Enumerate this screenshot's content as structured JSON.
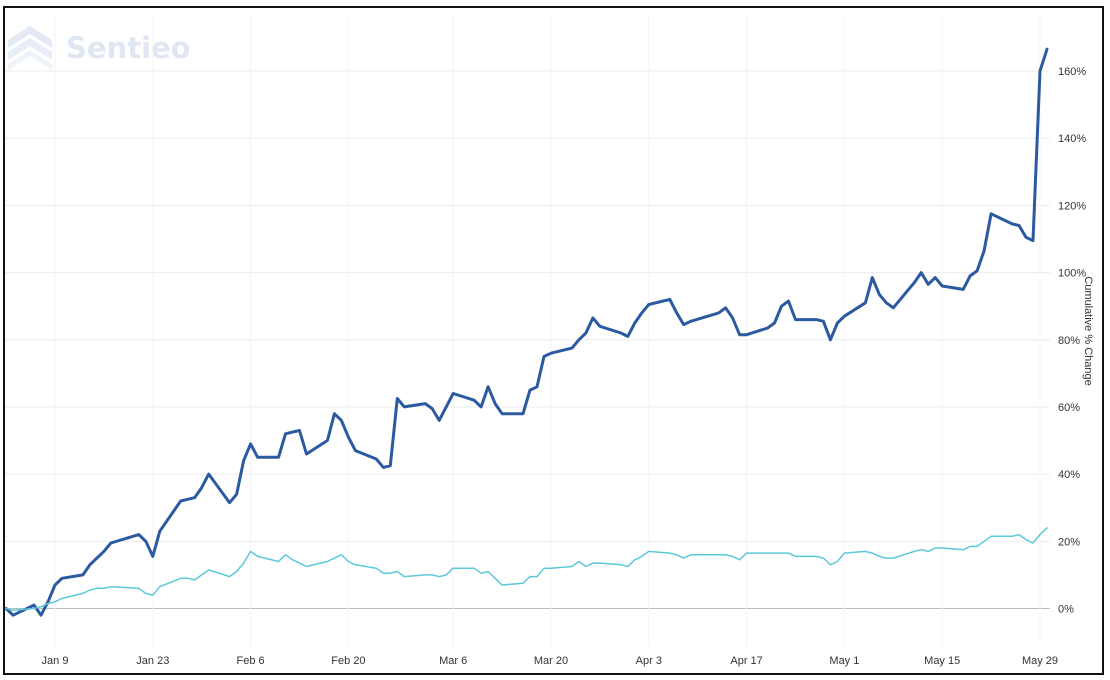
{
  "brand": {
    "name": "Sentieo",
    "color": "#dfe7f3",
    "icon": "sentieo-logo-icon"
  },
  "colors": {
    "primary_line": "#2b5aa0",
    "secondary_line": "#5ec8db",
    "grid": "#ececec",
    "baseline": "#bbbbbb",
    "border": "#111111"
  },
  "chart_data": {
    "type": "line",
    "title": "",
    "xlabel": "",
    "ylabel": "Cumulative % Change",
    "x_ticks": [
      "Jan 9",
      "Jan 23",
      "Feb 6",
      "Feb 20",
      "Mar 6",
      "Mar 20",
      "Apr 3",
      "Apr 17",
      "May 1",
      "May 15",
      "May 29"
    ],
    "y_ticks": [
      "0%",
      "20%",
      "40%",
      "60%",
      "80%",
      "100%",
      "120%",
      "140%",
      "160%"
    ],
    "ylim": [
      -11,
      175
    ],
    "xlim": [
      "2020-01-02",
      "2020-05-30"
    ],
    "grid": true,
    "y_axis_position": "right",
    "series": [
      {
        "color": "#2b5aa0",
        "points": [
          [
            "2020-01-02",
            0
          ],
          [
            "2020-01-03",
            -2
          ],
          [
            "2020-01-06",
            1
          ],
          [
            "2020-01-07",
            -2
          ],
          [
            "2020-01-08",
            2
          ],
          [
            "2020-01-09",
            7
          ],
          [
            "2020-01-10",
            9
          ],
          [
            "2020-01-13",
            10
          ],
          [
            "2020-01-14",
            13
          ],
          [
            "2020-01-15",
            15
          ],
          [
            "2020-01-16",
            17
          ],
          [
            "2020-01-17",
            19.5
          ],
          [
            "2020-01-21",
            22
          ],
          [
            "2020-01-22",
            20
          ],
          [
            "2020-01-23",
            15.5
          ],
          [
            "2020-01-24",
            23
          ],
          [
            "2020-01-27",
            32
          ],
          [
            "2020-01-28",
            32.5
          ],
          [
            "2020-01-29",
            33
          ],
          [
            "2020-01-30",
            36
          ],
          [
            "2020-01-31",
            40
          ],
          [
            "2020-02-03",
            31.5
          ],
          [
            "2020-02-04",
            34
          ],
          [
            "2020-02-05",
            44
          ],
          [
            "2020-02-06",
            49
          ],
          [
            "2020-02-07",
            45
          ],
          [
            "2020-02-10",
            45
          ],
          [
            "2020-02-11",
            52
          ],
          [
            "2020-02-12",
            52.5
          ],
          [
            "2020-02-13",
            53
          ],
          [
            "2020-02-14",
            46
          ],
          [
            "2020-02-17",
            50
          ],
          [
            "2020-02-18",
            58
          ],
          [
            "2020-02-19",
            56
          ],
          [
            "2020-02-20",
            51
          ],
          [
            "2020-02-21",
            47
          ],
          [
            "2020-02-24",
            44.5
          ],
          [
            "2020-02-25",
            42
          ],
          [
            "2020-02-26",
            42.5
          ],
          [
            "2020-02-27",
            62.5
          ],
          [
            "2020-02-28",
            60
          ],
          [
            "2020-03-02",
            61
          ],
          [
            "2020-03-03",
            59.5
          ],
          [
            "2020-03-04",
            56
          ],
          [
            "2020-03-05",
            60
          ],
          [
            "2020-03-06",
            64
          ],
          [
            "2020-03-09",
            62
          ],
          [
            "2020-03-10",
            60
          ],
          [
            "2020-03-11",
            66
          ],
          [
            "2020-03-12",
            61
          ],
          [
            "2020-03-13",
            58
          ],
          [
            "2020-03-16",
            58
          ],
          [
            "2020-03-17",
            65
          ],
          [
            "2020-03-18",
            66
          ],
          [
            "2020-03-19",
            75
          ],
          [
            "2020-03-20",
            76
          ],
          [
            "2020-03-23",
            77.5
          ],
          [
            "2020-03-24",
            80
          ],
          [
            "2020-03-25",
            82
          ],
          [
            "2020-03-26",
            86.5
          ],
          [
            "2020-03-27",
            84
          ],
          [
            "2020-03-30",
            82
          ],
          [
            "2020-03-31",
            81
          ],
          [
            "2020-04-01",
            85
          ],
          [
            "2020-04-02",
            88
          ],
          [
            "2020-04-03",
            90.5
          ],
          [
            "2020-04-06",
            92
          ],
          [
            "2020-04-07",
            88
          ],
          [
            "2020-04-08",
            84.5
          ],
          [
            "2020-04-09",
            85.5
          ],
          [
            "2020-04-13",
            88
          ],
          [
            "2020-04-14",
            89.5
          ],
          [
            "2020-04-15",
            86.5
          ],
          [
            "2020-04-16",
            81.5
          ],
          [
            "2020-04-17",
            81.5
          ],
          [
            "2020-04-20",
            83.5
          ],
          [
            "2020-04-21",
            85
          ],
          [
            "2020-04-22",
            90
          ],
          [
            "2020-04-23",
            91.5
          ],
          [
            "2020-04-24",
            86
          ],
          [
            "2020-04-27",
            86
          ],
          [
            "2020-04-28",
            85.5
          ],
          [
            "2020-04-29",
            80
          ],
          [
            "2020-04-30",
            85
          ],
          [
            "2020-05-01",
            87
          ],
          [
            "2020-05-04",
            91
          ],
          [
            "2020-05-05",
            98.5
          ],
          [
            "2020-05-06",
            93.5
          ],
          [
            "2020-05-07",
            91
          ],
          [
            "2020-05-08",
            89.5
          ],
          [
            "2020-05-11",
            97
          ],
          [
            "2020-05-12",
            100
          ],
          [
            "2020-05-13",
            96.5
          ],
          [
            "2020-05-14",
            98.5
          ],
          [
            "2020-05-15",
            96
          ],
          [
            "2020-05-18",
            95
          ],
          [
            "2020-05-19",
            99
          ],
          [
            "2020-05-20",
            100.5
          ],
          [
            "2020-05-21",
            106.5
          ],
          [
            "2020-05-22",
            117.5
          ],
          [
            "2020-05-25",
            114.5
          ],
          [
            "2020-05-26",
            114
          ],
          [
            "2020-05-27",
            110.5
          ],
          [
            "2020-05-28",
            109.5
          ],
          [
            "2020-05-29",
            160
          ],
          [
            "2020-05-30",
            166.5
          ]
        ]
      },
      {
        "color": "#5ec8db",
        "points": [
          [
            "2020-01-02",
            0
          ],
          [
            "2020-01-03",
            -0.5
          ],
          [
            "2020-01-06",
            0
          ],
          [
            "2020-01-07",
            0.5
          ],
          [
            "2020-01-08",
            1.5
          ],
          [
            "2020-01-09",
            2
          ],
          [
            "2020-01-10",
            3
          ],
          [
            "2020-01-13",
            4.5
          ],
          [
            "2020-01-14",
            5.5
          ],
          [
            "2020-01-15",
            6
          ],
          [
            "2020-01-16",
            6
          ],
          [
            "2020-01-17",
            6.5
          ],
          [
            "2020-01-21",
            6
          ],
          [
            "2020-01-22",
            4.5
          ],
          [
            "2020-01-23",
            4
          ],
          [
            "2020-01-24",
            6.5
          ],
          [
            "2020-01-27",
            9
          ],
          [
            "2020-01-28",
            9
          ],
          [
            "2020-01-29",
            8.5
          ],
          [
            "2020-01-30",
            10
          ],
          [
            "2020-01-31",
            11.5
          ],
          [
            "2020-02-03",
            9.5
          ],
          [
            "2020-02-04",
            11
          ],
          [
            "2020-02-05",
            13.5
          ],
          [
            "2020-02-06",
            17
          ],
          [
            "2020-02-07",
            15.5
          ],
          [
            "2020-02-10",
            14
          ],
          [
            "2020-02-11",
            16
          ],
          [
            "2020-02-12",
            14.5
          ],
          [
            "2020-02-13",
            13.5
          ],
          [
            "2020-02-14",
            12.5
          ],
          [
            "2020-02-17",
            14
          ],
          [
            "2020-02-18",
            15
          ],
          [
            "2020-02-19",
            16
          ],
          [
            "2020-02-20",
            14
          ],
          [
            "2020-02-21",
            13
          ],
          [
            "2020-02-24",
            12
          ],
          [
            "2020-02-25",
            10.5
          ],
          [
            "2020-02-26",
            10.5
          ],
          [
            "2020-02-27",
            11
          ],
          [
            "2020-02-28",
            9.5
          ],
          [
            "2020-03-02",
            10
          ],
          [
            "2020-03-03",
            10
          ],
          [
            "2020-03-04",
            9.5
          ],
          [
            "2020-03-05",
            10
          ],
          [
            "2020-03-06",
            12
          ],
          [
            "2020-03-09",
            12
          ],
          [
            "2020-03-10",
            10.5
          ],
          [
            "2020-03-11",
            11
          ],
          [
            "2020-03-12",
            9
          ],
          [
            "2020-03-13",
            7
          ],
          [
            "2020-03-16",
            7.5
          ],
          [
            "2020-03-17",
            9.5
          ],
          [
            "2020-03-18",
            9.5
          ],
          [
            "2020-03-19",
            12
          ],
          [
            "2020-03-20",
            12
          ],
          [
            "2020-03-23",
            12.5
          ],
          [
            "2020-03-24",
            14
          ],
          [
            "2020-03-25",
            12.5
          ],
          [
            "2020-03-26",
            13.5
          ],
          [
            "2020-03-27",
            13.5
          ],
          [
            "2020-03-30",
            13
          ],
          [
            "2020-03-31",
            12.5
          ],
          [
            "2020-04-01",
            14.5
          ],
          [
            "2020-04-02",
            15.5
          ],
          [
            "2020-04-03",
            17
          ],
          [
            "2020-04-06",
            16.5
          ],
          [
            "2020-04-07",
            16
          ],
          [
            "2020-04-08",
            15
          ],
          [
            "2020-04-09",
            16
          ],
          [
            "2020-04-13",
            16
          ],
          [
            "2020-04-14",
            16
          ],
          [
            "2020-04-15",
            15.5
          ],
          [
            "2020-04-16",
            14.5
          ],
          [
            "2020-04-17",
            16.5
          ],
          [
            "2020-04-20",
            16.5
          ],
          [
            "2020-04-21",
            16.5
          ],
          [
            "2020-04-22",
            16.5
          ],
          [
            "2020-04-23",
            16.5
          ],
          [
            "2020-04-24",
            15.5
          ],
          [
            "2020-04-27",
            15.5
          ],
          [
            "2020-04-28",
            15
          ],
          [
            "2020-04-29",
            13
          ],
          [
            "2020-04-30",
            14
          ],
          [
            "2020-05-01",
            16.5
          ],
          [
            "2020-05-04",
            17
          ],
          [
            "2020-05-05",
            16.5
          ],
          [
            "2020-05-06",
            15.5
          ],
          [
            "2020-05-07",
            15
          ],
          [
            "2020-05-08",
            15
          ],
          [
            "2020-05-11",
            17
          ],
          [
            "2020-05-12",
            17.5
          ],
          [
            "2020-05-13",
            17
          ],
          [
            "2020-05-14",
            18
          ],
          [
            "2020-05-15",
            18
          ],
          [
            "2020-05-18",
            17.5
          ],
          [
            "2020-05-19",
            18.5
          ],
          [
            "2020-05-20",
            18.5
          ],
          [
            "2020-05-21",
            20
          ],
          [
            "2020-05-22",
            21.5
          ],
          [
            "2020-05-25",
            21.5
          ],
          [
            "2020-05-26",
            22
          ],
          [
            "2020-05-27",
            20.5
          ],
          [
            "2020-05-28",
            19.5
          ],
          [
            "2020-05-29",
            22
          ],
          [
            "2020-05-30",
            24
          ]
        ]
      }
    ]
  }
}
